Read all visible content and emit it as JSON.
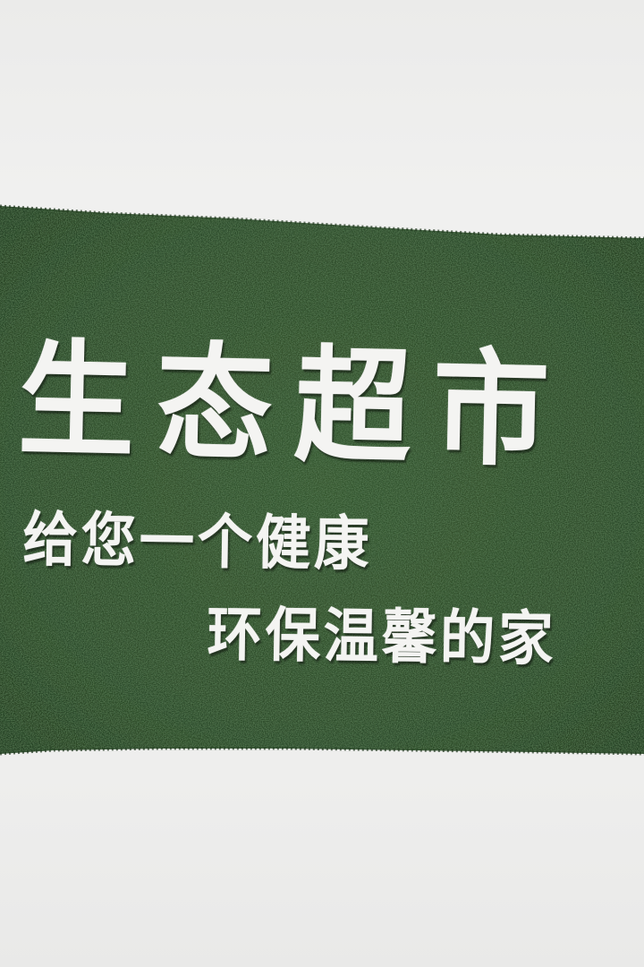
{
  "sign": {
    "title": "生态超市",
    "line1": "给您一个健康",
    "line2": "环保温馨的家"
  },
  "colors": {
    "wall": "#eeeeed",
    "grass": "#2f4d2c",
    "grass_dark": "#223a20",
    "letters": "#f4f4f2"
  }
}
